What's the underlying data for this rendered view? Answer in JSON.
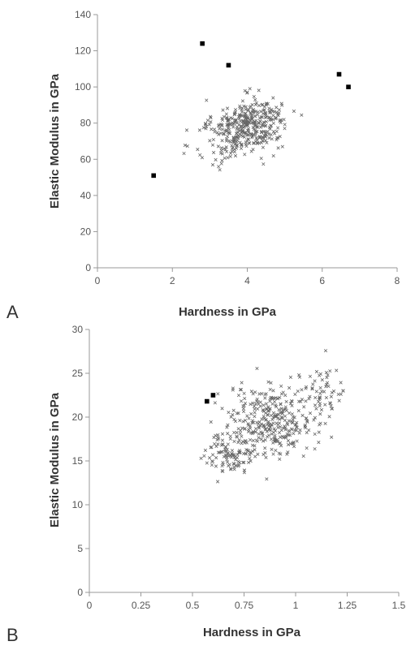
{
  "chart_data": [
    {
      "type": "scatter",
      "panel_label": "A",
      "xlabel": "Hardness in GPa",
      "ylabel": "Elastic Modulus in GPa",
      "xlim": [
        0,
        8
      ],
      "ylim": [
        0,
        140
      ],
      "x_ticks": [
        0,
        2,
        4,
        6,
        8
      ],
      "y_ticks": [
        0,
        20,
        40,
        60,
        80,
        100,
        120,
        140
      ],
      "x_tick_labels": [
        "0",
        "2",
        "4",
        "6",
        "8"
      ],
      "y_tick_labels": [
        "0",
        "20",
        "40",
        "60",
        "80",
        "100",
        "120",
        "140"
      ],
      "grid": false,
      "cloud": {
        "marker": "x",
        "color": "#666666",
        "clusters": [
          {
            "cx": 4.0,
            "cy": 79,
            "sx": 0.45,
            "sy": 7,
            "n": 260
          },
          {
            "cx": 3.6,
            "cy": 70,
            "sx": 0.5,
            "sy": 8,
            "n": 90
          },
          {
            "cx": 4.5,
            "cy": 85,
            "sx": 0.4,
            "sy": 5,
            "n": 60
          }
        ]
      },
      "highlight_points": {
        "marker": "square",
        "color": "#000000",
        "points": [
          [
            2.8,
            124
          ],
          [
            3.5,
            112
          ],
          [
            6.45,
            107
          ],
          [
            6.7,
            100
          ],
          [
            1.5,
            51
          ]
        ]
      }
    },
    {
      "type": "scatter",
      "panel_label": "B",
      "xlabel": "Hardness in GPa",
      "ylabel": "Elastic Modulus in GPa",
      "xlim": [
        0,
        1.5
      ],
      "ylim": [
        0,
        30
      ],
      "x_ticks": [
        0,
        0.25,
        0.5,
        0.75,
        1,
        1.25,
        1.5
      ],
      "y_ticks": [
        0,
        5,
        10,
        15,
        20,
        25,
        30
      ],
      "x_tick_labels": [
        "0",
        "0.25",
        "0.5",
        "0.75",
        "1",
        "1.25",
        "1.5"
      ],
      "y_tick_labels": [
        "0",
        "5",
        "10",
        "15",
        "20",
        "25",
        "30"
      ],
      "grid": false,
      "cloud": {
        "marker": "x",
        "color": "#666666",
        "clusters": [
          {
            "cx": 0.88,
            "cy": 19.5,
            "sx": 0.1,
            "sy": 2.0,
            "n": 320
          },
          {
            "cx": 0.68,
            "cy": 16.0,
            "sx": 0.06,
            "sy": 1.2,
            "n": 110
          },
          {
            "cx": 1.12,
            "cy": 22.5,
            "sx": 0.07,
            "sy": 1.8,
            "n": 70
          }
        ]
      },
      "highlight_points": {
        "marker": "square",
        "color": "#000000",
        "points": [
          [
            0.57,
            21.8
          ],
          [
            0.6,
            22.5
          ]
        ]
      }
    }
  ]
}
